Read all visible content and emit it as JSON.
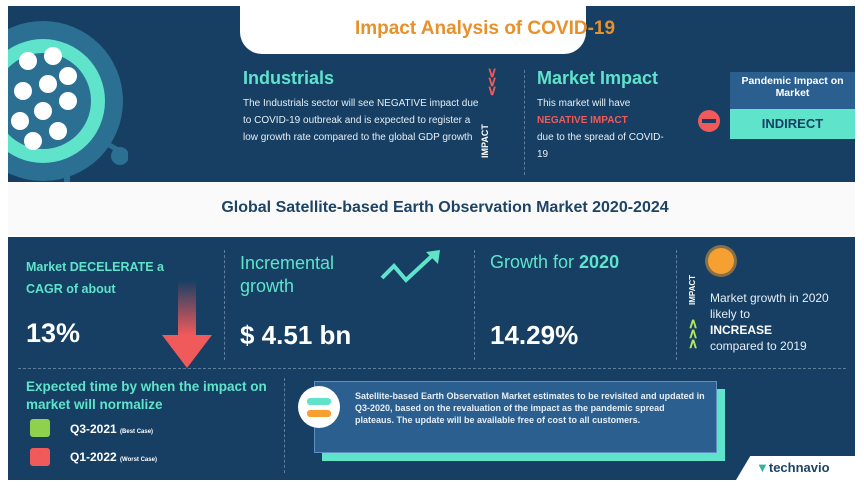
{
  "header": {
    "title": "Impact Analysis of COVID-19"
  },
  "industrials": {
    "title": "Industrials",
    "text": "The Industrials sector will see NEGATIVE impact due to COVID-19 outbreak and is expected to register a low growth rate compared to the global GDP growth"
  },
  "impact_label": "IMPACT",
  "market_impact": {
    "title": "Market Impact",
    "line1": "This market will have",
    "highlight": "NEGATIVE IMPACT",
    "line2": "due to the spread of COVID-19"
  },
  "pandemic": {
    "label": "Pandemic Impact on Market",
    "value": "INDIRECT"
  },
  "main_title": "Global Satellite-based Earth Observation Market 2020-2024",
  "cagr": {
    "label": "Market DECELERATE a CAGR of about",
    "value": "13%"
  },
  "incremental": {
    "label": "Incremental growth",
    "value": "$ 4.51 bn"
  },
  "growth": {
    "label": "Growth for ",
    "year": "2020",
    "value": "14.29%"
  },
  "growth_impact": {
    "label": "IMPACT",
    "line1": "Market growth in 2020 likely to",
    "highlight": "INCREASE",
    "line2": "compared to 2019"
  },
  "normalize": {
    "title": "Expected time by when the impact on market will normalize",
    "best": "Q3-2021",
    "best_note": "(Best Case)",
    "worst": "Q1-2022",
    "worst_note": "(Worst Case)"
  },
  "note": "Satellite-based Earth Observation Market estimates to be revisited and updated in Q3-2020, based on the revaluation of the impact as the pandemic spread plateaus. The update will be available free of cost to all customers.",
  "brand": "technavio",
  "colors": {
    "navy": "#163f63",
    "teal": "#5fe3cb",
    "orange": "#e8902a",
    "red": "#f05a5a"
  }
}
